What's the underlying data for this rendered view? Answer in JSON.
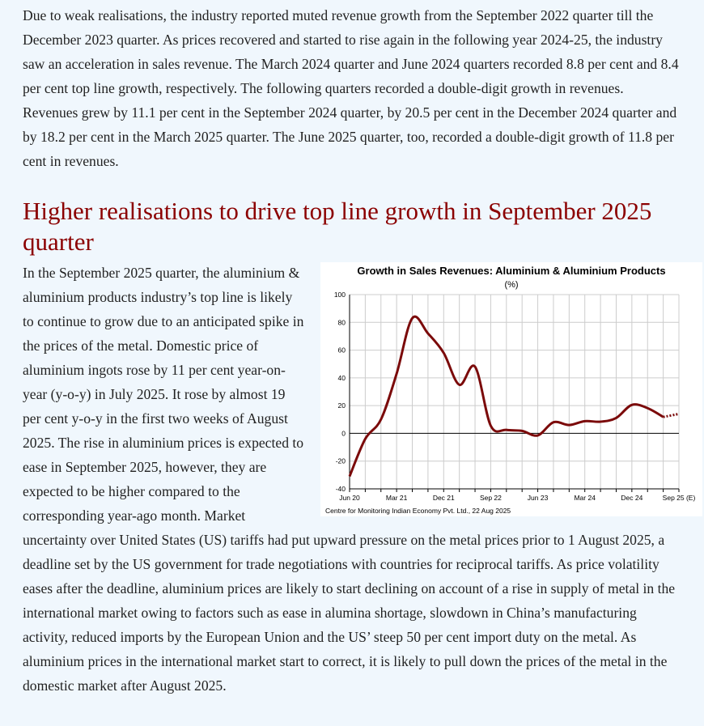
{
  "para1": "Due to weak realisations, the industry reported muted revenue growth from the September 2022 quarter till the December 2023 quarter. As prices recovered and started to rise again in the following year 2024-25, the industry saw an acceleration in sales revenue. The March 2024 quarter and June 2024 quarters recorded 8.8 per cent and 8.4 per cent top line growth, respectively. The following quarters recorded a double-digit growth in revenues. Revenues grew by 11.1 per cent in the September 2024 quarter, by 20.5 per cent in the December 2024 quarter and by 18.2 per cent in the March 2025 quarter. The June 2025 quarter, too, recorded a double-digit growth of 11.8 per cent in revenues.",
  "heading": "Higher realisations to drive top line growth in September 2025 quarter",
  "para2": "In the September 2025 quarter, the aluminium & aluminium products industry’s top line is likely to continue to grow due to an anticipated spike in the prices of the metal. Domestic price of aluminium ingots rose by 11 per cent year-on-year (y-o-y) in July 2025. It rose by almost 19 per cent y-o-y in the first two weeks of August 2025. The rise in aluminium prices is expected to ease in September 2025, however, they are expected to be higher compared to the corresponding year-ago month. Market uncertainty over United States (US) tariffs had put upward pressure on the metal prices prior to 1 August 2025, a deadline set by the US government for trade negotiations with countries for reciprocal tariffs. As price volatility eases after the deadline, aluminium prices are likely to start declining on account of a rise in supply of metal in the international market owing to factors such as ease in alumina shortage, slowdown in China’s manufacturing activity, reduced imports by the European Union and the US’ steep 50 per cent import duty on the metal. As aluminium prices in the international market start to correct, it is likely to pull down the prices of the metal in the domestic market after August 2025.",
  "chart_data": {
    "type": "line",
    "title": "Growth in Sales Revenues: Aluminium & Aluminium Products",
    "subtitle": "(%)",
    "source": "Centre for Monitoring Indian Economy Pvt. Ltd., 22 Aug 2025",
    "x": [
      "Jun 20",
      "Sep 20",
      "Dec 20",
      "Mar 21",
      "Jun 21",
      "Sep 21",
      "Dec 21",
      "Mar 22",
      "Jun 22",
      "Sep 22",
      "Dec 22",
      "Mar 23",
      "Jun 23",
      "Sep 23",
      "Dec 23",
      "Mar 24",
      "Jun 24",
      "Sep 24",
      "Dec 24",
      "Mar 25",
      "Jun 25",
      "Sep 25 (E)"
    ],
    "x_tick_labels": [
      "Jun 20",
      "Mar 21",
      "Dec 21",
      "Sep 22",
      "Jun 23",
      "Mar 24",
      "Dec 24",
      "Sep 25 (E)"
    ],
    "values": [
      -31,
      -4,
      10,
      43,
      83,
      72,
      58,
      35,
      48,
      5.5,
      2.5,
      1.8,
      -1.5,
      8,
      6,
      8.8,
      8.4,
      11.1,
      20.5,
      18.2,
      11.8,
      14
    ],
    "estimated_from_index": 20,
    "ylim": [
      -40,
      100
    ],
    "yticks": [
      -40,
      -20,
      0,
      20,
      40,
      60,
      80,
      100
    ],
    "grid": true,
    "line_color": "#7b0a0a"
  }
}
